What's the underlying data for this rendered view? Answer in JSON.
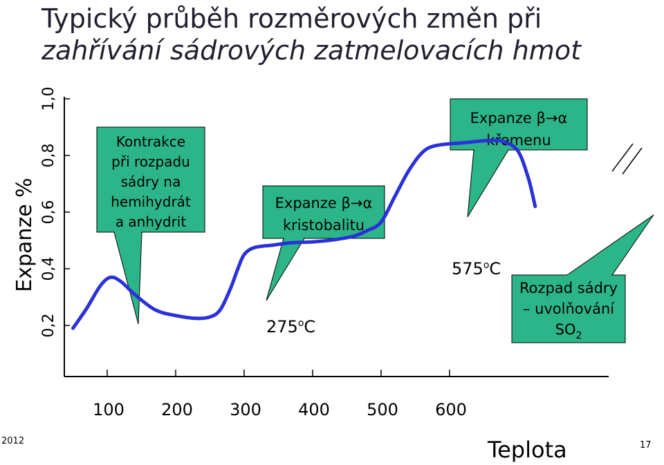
{
  "page": {
    "title_line1": "Typický průběh rozměrových změn při",
    "title_line2": "zahřívání sádrových zatmelovacích hmot",
    "footer_left": "2012",
    "footer_right": "17"
  },
  "colors": {
    "curve": "#2b31d8",
    "callout_fill": "#2db58a",
    "callout_stroke": "#000000",
    "axis": "#000000"
  },
  "chart_data": {
    "type": "line",
    "title": "Typický průběh rozměrových změn při zahřívání sádrových zatmelovacích hmot",
    "xlabel": "Teplota",
    "ylabel": "Expanze %",
    "x_ticks": [
      "100",
      "200",
      "300",
      "400",
      "500",
      "600"
    ],
    "y_ticks": [
      "0,2",
      "0,4",
      "0,6",
      "0,8",
      "1,0"
    ],
    "xlim": [
      50,
      720
    ],
    "ylim": [
      0.1,
      1.0
    ],
    "grid": false,
    "series": [
      {
        "points": [
          [
            50,
            0.19
          ],
          [
            70,
            0.26
          ],
          [
            90,
            0.34
          ],
          [
            105,
            0.37
          ],
          [
            120,
            0.355
          ],
          [
            140,
            0.31
          ],
          [
            170,
            0.255
          ],
          [
            200,
            0.235
          ],
          [
            230,
            0.225
          ],
          [
            250,
            0.23
          ],
          [
            265,
            0.255
          ],
          [
            280,
            0.33
          ],
          [
            290,
            0.395
          ],
          [
            300,
            0.45
          ],
          [
            315,
            0.475
          ],
          [
            340,
            0.483
          ],
          [
            370,
            0.492
          ],
          [
            400,
            0.495
          ],
          [
            430,
            0.502
          ],
          [
            460,
            0.515
          ],
          [
            480,
            0.535
          ],
          [
            500,
            0.565
          ],
          [
            520,
            0.655
          ],
          [
            540,
            0.745
          ],
          [
            560,
            0.81
          ],
          [
            580,
            0.835
          ],
          [
            620,
            0.845
          ],
          [
            660,
            0.853
          ],
          [
            680,
            0.848
          ],
          [
            700,
            0.815
          ],
          [
            715,
            0.72
          ],
          [
            725,
            0.62
          ]
        ]
      }
    ],
    "annotations": {
      "contraction": [
        "Kontrakce",
        "při rozpadu",
        "sádry na",
        "hemihydrát",
        "a anhydrit"
      ],
      "cristobalite": [
        "Expanze β→α",
        "kristobalitu"
      ],
      "quartz": [
        "Expanze β→α",
        "křemenu"
      ],
      "decomposition": [
        "Rozpad sádry",
        "– uvolňování",
        "SO2"
      ],
      "temp_275": "275°C",
      "temp_575": "575°C"
    }
  }
}
